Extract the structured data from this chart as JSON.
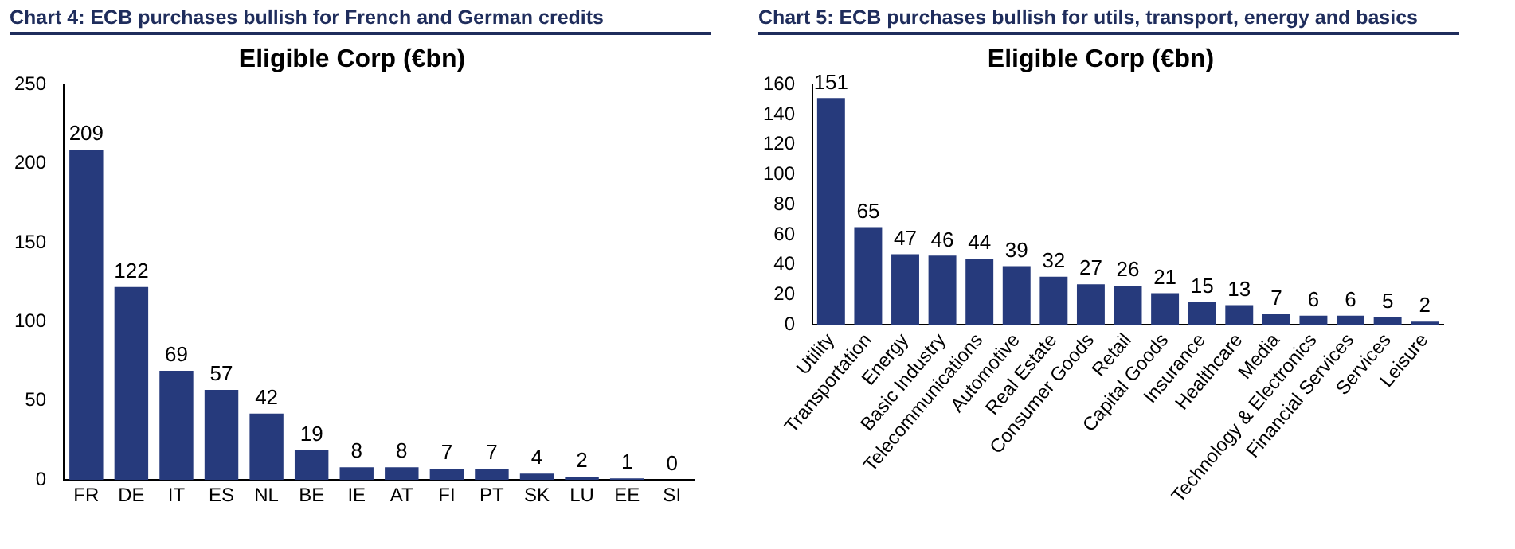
{
  "chart_data": [
    {
      "type": "bar",
      "title": "Chart 4: ECB purchases bullish for French and German credits",
      "subtitle": "Eligible Corp (€bn)",
      "categories": [
        "FR",
        "DE",
        "IT",
        "ES",
        "NL",
        "BE",
        "IE",
        "AT",
        "FI",
        "PT",
        "SK",
        "LU",
        "EE",
        "SI"
      ],
      "values": [
        209,
        122,
        69,
        57,
        42,
        19,
        8,
        8,
        7,
        7,
        4,
        2,
        1,
        0
      ],
      "color": "#263a7c",
      "ylim": [
        0,
        250
      ],
      "yticks": [
        0,
        50,
        100,
        150,
        200,
        250
      ],
      "grid": false,
      "data_labels": true
    },
    {
      "type": "bar",
      "title": "Chart 5: ECB purchases bullish for utils, transport, energy and basics",
      "subtitle": "Eligible Corp (€bn)",
      "categories": [
        "Utility",
        "Transportation",
        "Energy",
        "Basic Industry",
        "Telecommunications",
        "Automotive",
        "Real Estate",
        "Consumer Goods",
        "Retail",
        "Capital Goods",
        "Insurance",
        "Healthcare",
        "Media",
        "Technology & Electronics",
        "Financial Services",
        "Services",
        "Leisure"
      ],
      "values": [
        151,
        65,
        47,
        46,
        44,
        39,
        32,
        27,
        26,
        21,
        15,
        13,
        7,
        6,
        6,
        5,
        2
      ],
      "color": "#263a7c",
      "ylim": [
        0,
        160
      ],
      "yticks": [
        0,
        20,
        40,
        60,
        80,
        100,
        120,
        140,
        160
      ],
      "grid": false,
      "data_labels": true
    }
  ]
}
